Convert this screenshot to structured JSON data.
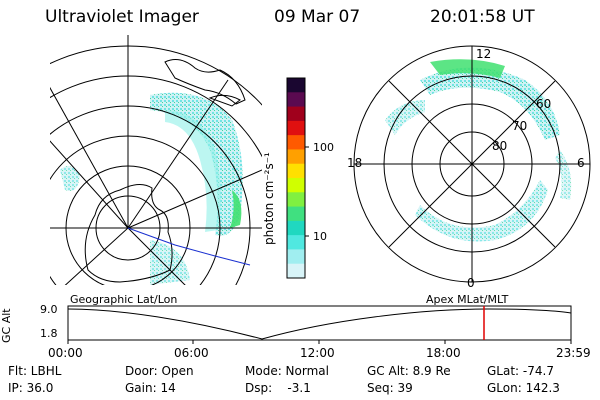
{
  "header": {
    "instrument": "Ultraviolet Imager",
    "date": "09 Mar 07",
    "time": "20:01:58 UT"
  },
  "colorbar": {
    "unit": "photon cm⁻²s⁻¹",
    "ticks": [
      "100",
      "10"
    ],
    "colors": [
      "#1a0630",
      "#5a0a50",
      "#a0001c",
      "#e01010",
      "#ff5a00",
      "#ffa000",
      "#ffe000",
      "#d0ff00",
      "#80f040",
      "#40e080",
      "#20d8c0",
      "#50e8e0",
      "#a0eef0",
      "#d8f4f8"
    ]
  },
  "polar": {
    "mlt_labels": [
      "12",
      "18",
      "6",
      "0"
    ],
    "lat_labels": [
      "60",
      "70",
      "80"
    ]
  },
  "panel": {
    "left_title": "Geographic Lat/Lon",
    "right_title": "Apex MLat/MLT",
    "ylabel": "GC Alt",
    "y_ticks": [
      "9.0",
      "1.8"
    ],
    "x_ticks": [
      "00:00",
      "06:00",
      "12:00",
      "18:00",
      "23:59"
    ]
  },
  "info": {
    "filt": "Flt: LBHL",
    "door": "Door: Open",
    "mode": "Mode: Normal",
    "gcalt": "GC Alt: 8.9 Re",
    "glat": "GLat: -74.7",
    "ip": "IP: 36.0",
    "gain": "Gain: 14",
    "dsp": "Dsp:    -3.1",
    "seq": "Seq: 39",
    "glon": "GLon: 142.3"
  },
  "colors": {
    "boundary": "#1a30d0",
    "marker": "#e00000"
  }
}
